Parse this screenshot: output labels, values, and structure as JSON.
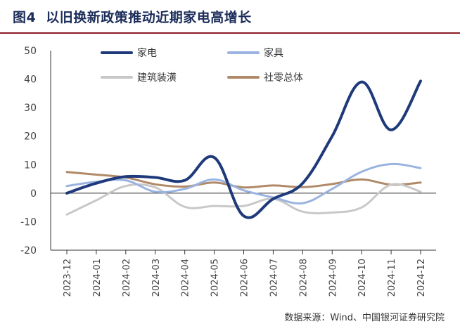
{
  "header": {
    "figure_no": "图4",
    "title": "以旧换新政策推动近期家电高增长"
  },
  "footer": {
    "source": "数据来源：Wind、中国银河证券研究院"
  },
  "chart_data": {
    "type": "line",
    "x": [
      "2023-12",
      "2024-01",
      "2024-02",
      "2024-03",
      "2024-04",
      "2024-05",
      "2024-06",
      "2024-07",
      "2024-08",
      "2024-09",
      "2024-10",
      "2024-11",
      "2024-12"
    ],
    "ylim": [
      -20,
      50
    ],
    "yticks": [
      50,
      40,
      30,
      20,
      10,
      0,
      -10,
      -20
    ],
    "grid": false,
    "legend_position": "top",
    "series": [
      {
        "name": "家电",
        "color": "#1f3a7a",
        "values": [
          0,
          3.5,
          5.8,
          5.5,
          4.5,
          12.5,
          -8,
          -2,
          3.5,
          20,
          39,
          22.2,
          39.3
        ]
      },
      {
        "name": "家具",
        "color": "#9ab3e0",
        "values": [
          2.5,
          4.0,
          4.5,
          0.5,
          1.5,
          4.8,
          1.0,
          -1.5,
          -3.5,
          1.5,
          7.5,
          10.2,
          8.8
        ]
      },
      {
        "name": "建筑装潢",
        "color": "#c8c8c8",
        "values": [
          -7.5,
          -2.5,
          2.5,
          2.0,
          -4.8,
          -4.5,
          -4.5,
          -2.0,
          -6.5,
          -6.8,
          -5.0,
          3.0,
          0.5
        ]
      },
      {
        "name": "社零总体",
        "color": "#b08a68",
        "values": [
          7.4,
          6.5,
          5.5,
          3.1,
          2.3,
          3.7,
          2.0,
          2.7,
          2.1,
          3.2,
          4.8,
          3.0,
          3.7
        ]
      }
    ]
  }
}
